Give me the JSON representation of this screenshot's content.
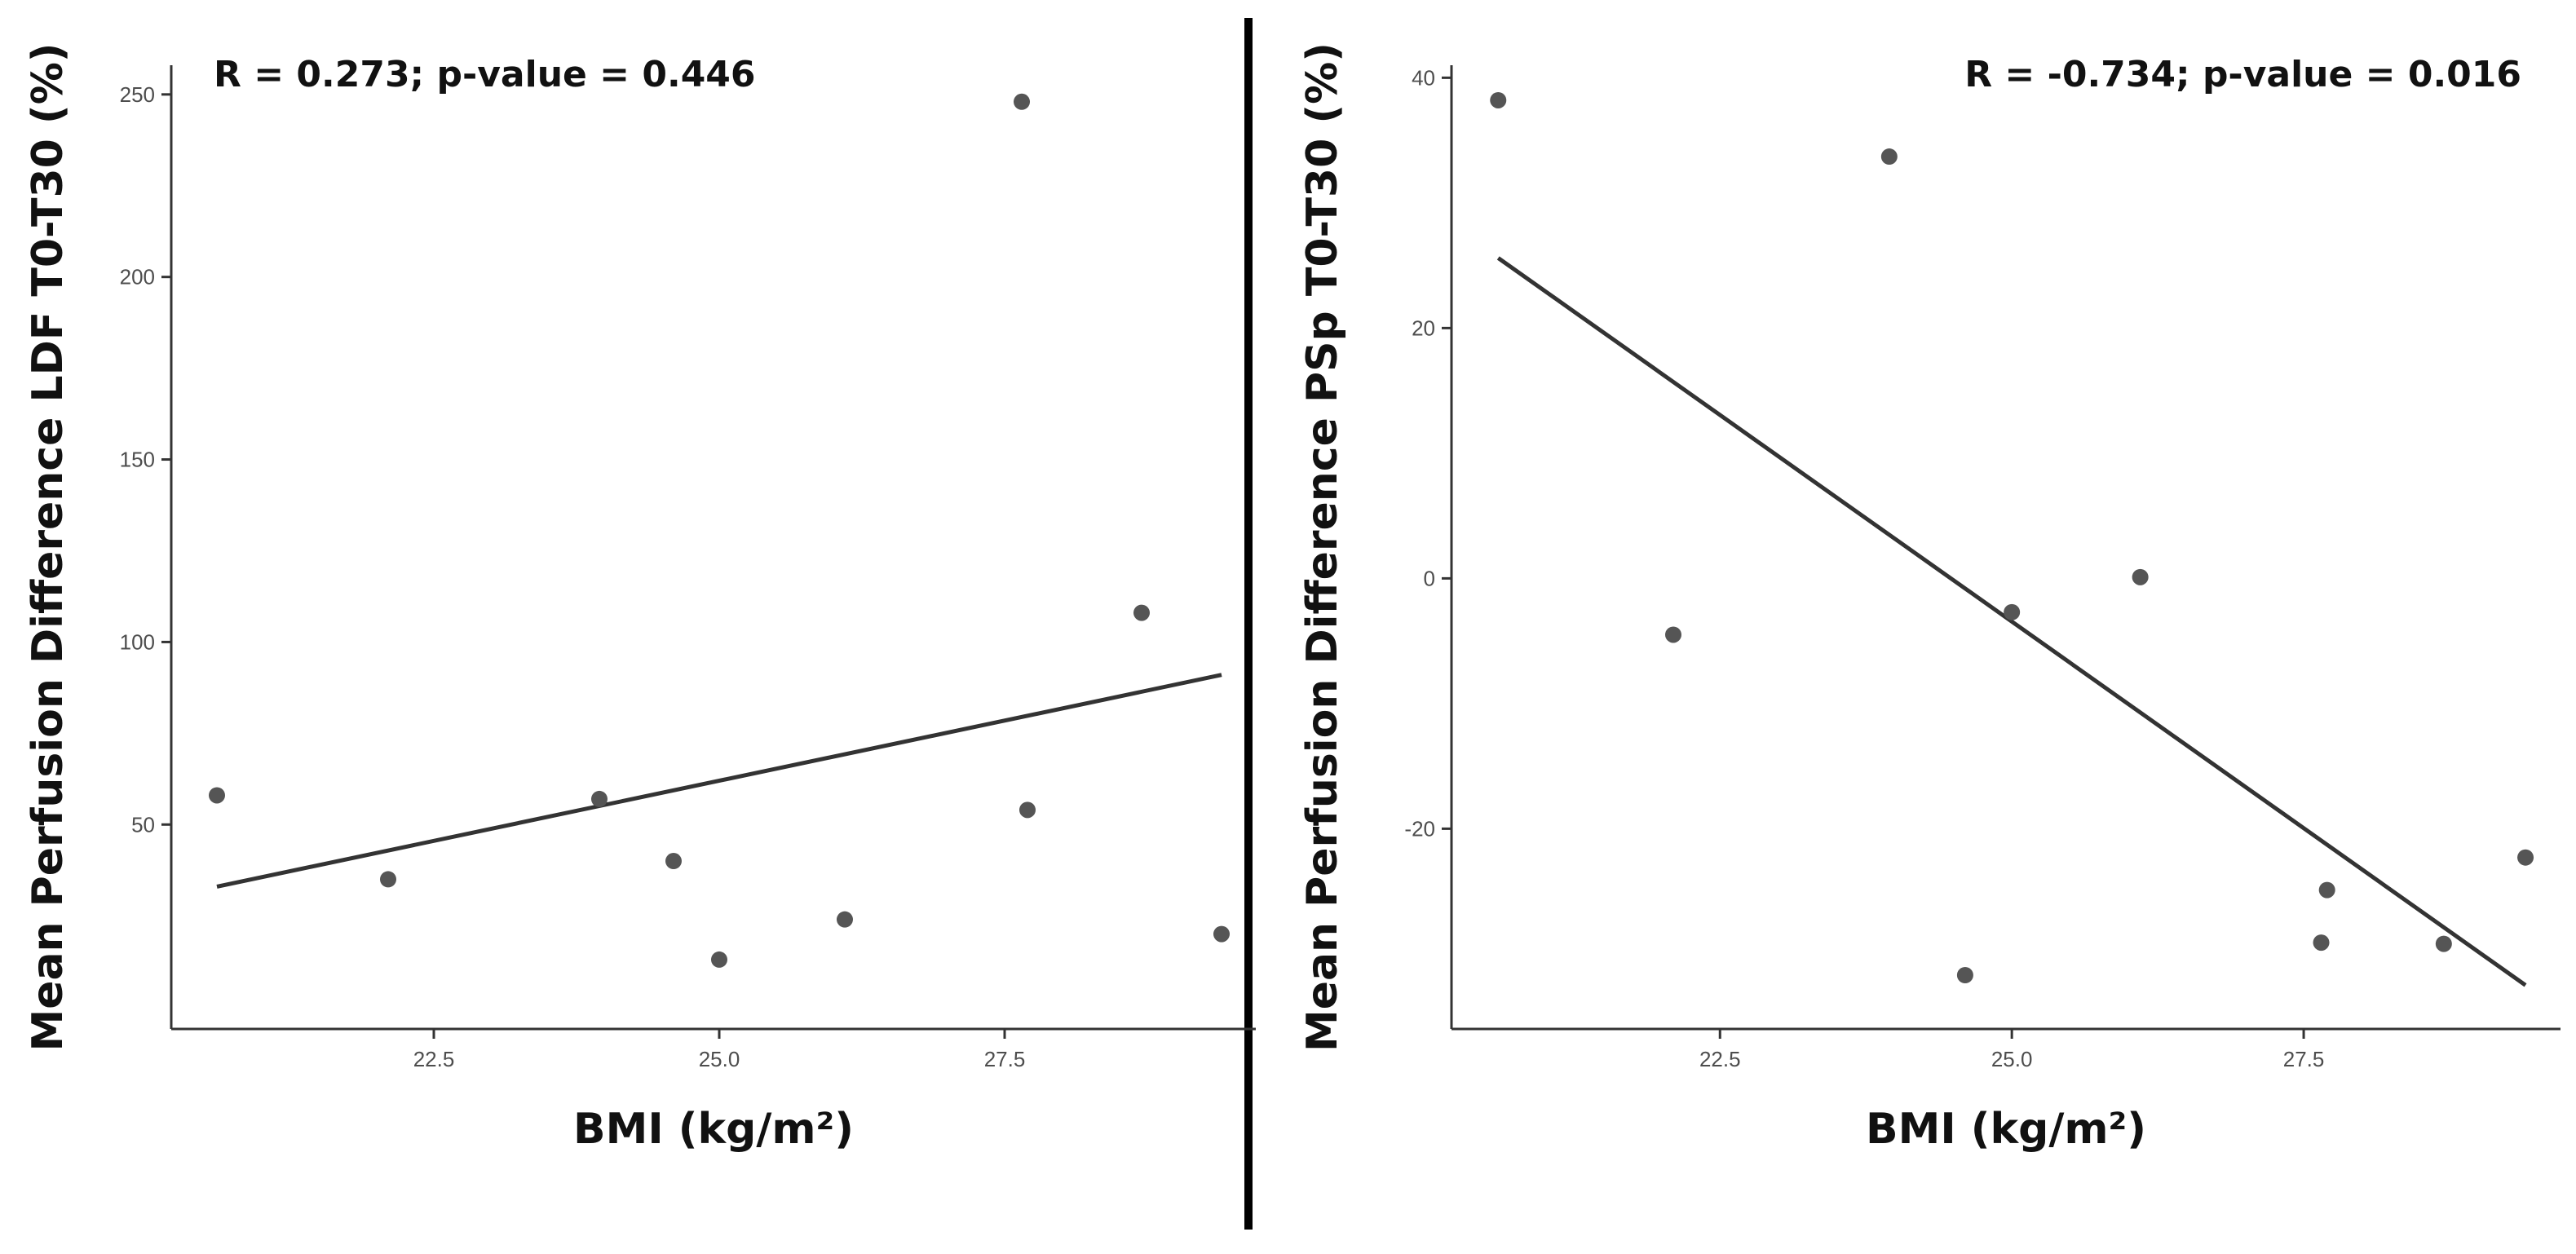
{
  "chart_data": [
    {
      "type": "scatter",
      "title": "",
      "annotation": "R = 0.273; p-value = 0.446",
      "annotation_position": "top-left",
      "xlabel": "BMI (kg/m²)",
      "ylabel": "Mean Perfusion Difference LDF T0-T30 (%)",
      "xlim": [
        20.2,
        29.7
      ],
      "ylim": [
        -6,
        258
      ],
      "xticks": [
        "22.5",
        "25.0",
        "27.5"
      ],
      "yticks": [
        "50",
        "100",
        "150",
        "200",
        "250"
      ],
      "grid": false,
      "x": [
        20.6,
        22.1,
        23.95,
        24.6,
        25.0,
        26.1,
        27.65,
        27.7,
        28.7,
        29.4
      ],
      "y": [
        58,
        35,
        57,
        40,
        13,
        24,
        248,
        54,
        108,
        20
      ],
      "trendline": {
        "x": [
          20.6,
          29.4
        ],
        "y": [
          33,
          91
        ]
      },
      "colors": {
        "points": "#555555",
        "line": "#333333"
      }
    },
    {
      "type": "scatter",
      "title": "",
      "annotation": "R = -0.734; p-value = 0.016",
      "annotation_position": "top-right",
      "xlabel": "BMI (kg/m²)",
      "ylabel": "Mean Perfusion Difference PSp T0-T30 (%)",
      "xlim": [
        20.2,
        29.7
      ],
      "ylim": [
        -36,
        41
      ],
      "xticks": [
        "22.5",
        "25.0",
        "27.5"
      ],
      "yticks": [
        "-20",
        "0",
        "20",
        "40"
      ],
      "grid": false,
      "x": [
        20.6,
        22.1,
        23.95,
        24.6,
        25.0,
        26.1,
        27.65,
        27.7,
        28.7,
        29.4
      ],
      "y": [
        38.2,
        -4.5,
        33.7,
        -31.7,
        -2.7,
        0.1,
        -29.1,
        -24.9,
        -29.2,
        -22.3
      ],
      "trendline": {
        "x": [
          20.6,
          29.4
        ],
        "y": [
          25.6,
          -32.5
        ]
      },
      "colors": {
        "points": "#555555",
        "line": "#333333"
      }
    }
  ],
  "colors": {
    "axis": "#333333",
    "divider": "#000000"
  }
}
